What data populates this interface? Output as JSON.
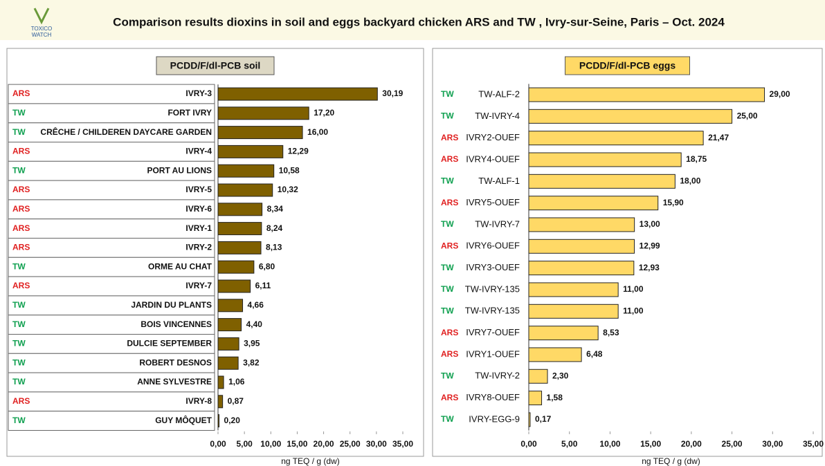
{
  "header": {
    "title": "Comparison results dioxins in soil and eggs backyard chicken ARS and TW , Ivry-sur-Seine, Paris – Oct. 2024",
    "logo": [
      "TOXICO",
      "WATCH"
    ]
  },
  "chart_data": [
    {
      "type": "bar",
      "orientation": "horizontal",
      "title": "PCDD/F/dl-PCB soil",
      "x_label": "ng TEQ / g (dw)",
      "color": "#7f6000",
      "group_colors": {
        "ARS": "#e02020",
        "TW": "#10a050"
      },
      "categories": [
        "IVRY-3",
        "FORT IVRY",
        "CRÊCHE / CHILDEREN DAYCARE GARDEN",
        "IVRY-4",
        "PORT AU LIONS",
        "IVRY-5",
        "IVRY-6",
        "IVRY-1",
        "IVRY-2",
        "ORME AU CHAT",
        "IVRY-7",
        "JARDIN DU PLANTS",
        "BOIS VINCENNES",
        "DULCIE SEPTEMBER",
        "ROBERT DESNOS",
        "ANNE SYLVESTRE",
        "IVRY-8",
        "GUY MÔQUET"
      ],
      "groups": [
        "ARS",
        "TW",
        "TW",
        "ARS",
        "TW",
        "ARS",
        "ARS",
        "ARS",
        "ARS",
        "TW",
        "ARS",
        "TW",
        "TW",
        "TW",
        "TW",
        "TW",
        "ARS",
        "TW"
      ],
      "values": [
        30.19,
        17.2,
        16.0,
        12.29,
        10.58,
        10.32,
        8.34,
        8.24,
        8.13,
        6.8,
        6.11,
        4.66,
        4.4,
        3.95,
        3.82,
        1.06,
        0.87,
        0.2
      ],
      "value_labels": [
        "30,19",
        "17,20",
        "16,00",
        "12,29",
        "10,58",
        "10,32",
        "8,34",
        "8,24",
        "8,13",
        "6,80",
        "6,11",
        "4,66",
        "4,40",
        "3,95",
        "3,82",
        "1,06",
        "0,87",
        "0,20"
      ],
      "xlim": [
        0,
        35
      ],
      "xticks": [
        {
          "value": 0,
          "label": "0,00"
        },
        {
          "value": 5,
          "label": "5,00"
        },
        {
          "value": 10,
          "label": "10,00"
        },
        {
          "value": 15,
          "label": "15,00"
        },
        {
          "value": 20,
          "label": "20,00"
        },
        {
          "value": 25,
          "label": "25,00"
        },
        {
          "value": 30,
          "label": "30,00"
        },
        {
          "value": 35,
          "label": "35,00"
        }
      ]
    },
    {
      "type": "bar",
      "orientation": "horizontal",
      "title": "PCDD/F/dl-PCB eggs",
      "x_label": "ng TEQ / g (dw)",
      "color": "#ffd966",
      "group_colors": {
        "ARS": "#e02020",
        "TW": "#10a050"
      },
      "categories": [
        "TW-ALF-2",
        "TW-IVRY-4",
        "IVRY2-OUEF",
        "IVRY4-OUEF",
        "TW-ALF-1",
        "IVRY5-OUEF",
        "TW-IVRY-7",
        "IVRY6-OUEF",
        "IVRY3-OUEF",
        "TW-IVRY-135",
        "TW-IVRY-135",
        "IVRY7-OUEF",
        "IVRY1-OUEF",
        "TW-IVRY-2",
        "IVRY8-OUEF",
        "IVRY-EGG-9"
      ],
      "groups": [
        "TW",
        "TW",
        "ARS",
        "ARS",
        "TW",
        "ARS",
        "TW",
        "ARS",
        "TW",
        "TW",
        "TW",
        "ARS",
        "ARS",
        "TW",
        "ARS",
        "TW"
      ],
      "values": [
        29.0,
        25.0,
        21.47,
        18.75,
        18.0,
        15.9,
        13.0,
        12.99,
        12.93,
        11.0,
        11.0,
        8.53,
        6.48,
        2.3,
        1.58,
        0.17
      ],
      "value_labels": [
        "29,00",
        "25,00",
        "21,47",
        "18,75",
        "18,00",
        "15,90",
        "13,00",
        "12,99",
        "12,93",
        "11,00",
        "11,00",
        "8,53",
        "6,48",
        "2,30",
        "1,58",
        "0,17"
      ],
      "xlim": [
        0,
        35
      ],
      "xticks": [
        {
          "value": 0,
          "label": "0,00"
        },
        {
          "value": 5,
          "label": "5,00"
        },
        {
          "value": 10,
          "label": "10,00"
        },
        {
          "value": 15,
          "label": "15,00"
        },
        {
          "value": 20,
          "label": "20,00"
        },
        {
          "value": 25,
          "label": "25,00"
        },
        {
          "value": 30,
          "label": "30,00"
        },
        {
          "value": 35,
          "label": "35,00"
        }
      ]
    }
  ]
}
